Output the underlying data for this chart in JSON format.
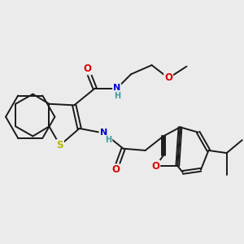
{
  "background_color": "#ebebeb",
  "bond_color": "#1a1a1a",
  "atom_colors": {
    "O": "#dd0000",
    "N": "#0000cc",
    "S": "#b8b800",
    "H": "#3a9a9a"
  },
  "figsize": [
    3.0,
    3.0
  ],
  "dpi": 100
}
